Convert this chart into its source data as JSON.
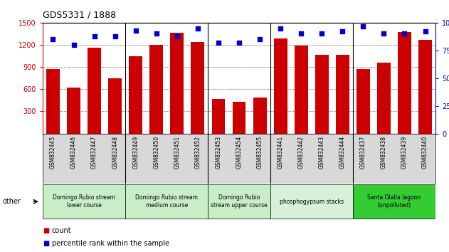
{
  "title": "GDS5331 / 1888",
  "categories": [
    "GSM832445",
    "GSM832446",
    "GSM832447",
    "GSM832448",
    "GSM832449",
    "GSM832450",
    "GSM832451",
    "GSM832452",
    "GSM832453",
    "GSM832454",
    "GSM832455",
    "GSM832441",
    "GSM832442",
    "GSM832443",
    "GSM832444",
    "GSM832437",
    "GSM832438",
    "GSM832439",
    "GSM832440"
  ],
  "counts": [
    870,
    625,
    1160,
    750,
    1050,
    1200,
    1360,
    1240,
    470,
    430,
    490,
    1290,
    1190,
    1070,
    1070,
    875,
    960,
    1370,
    1270
  ],
  "percentiles": [
    85,
    80,
    88,
    88,
    93,
    90,
    88,
    95,
    82,
    82,
    85,
    95,
    90,
    90,
    92,
    97,
    90,
    90,
    92
  ],
  "bar_color": "#cc0000",
  "dot_color": "#0000cc",
  "ylim_left": [
    0,
    1500
  ],
  "ylim_right": [
    0,
    100
  ],
  "yticks_left": [
    300,
    600,
    900,
    1200,
    1500
  ],
  "yticks_right": [
    0,
    25,
    50,
    75,
    100
  ],
  "group_boundaries": [
    3.5,
    7.5,
    10.5,
    14.5
  ],
  "groups": [
    {
      "label": "Domingo Rubio stream\nlower course",
      "start": 0,
      "end": 3,
      "color": "#c8eec8"
    },
    {
      "label": "Domingo Rubio stream\nmedium course",
      "start": 4,
      "end": 7,
      "color": "#c8eec8"
    },
    {
      "label": "Domingo Rubio\nstream upper course",
      "start": 8,
      "end": 10,
      "color": "#c8eec8"
    },
    {
      "label": "phosphogypsum stacks",
      "start": 11,
      "end": 14,
      "color": "#d8f0d8"
    },
    {
      "label": "Santa Olalla lagoon\n(unpolluted)",
      "start": 15,
      "end": 18,
      "color": "#33cc33"
    }
  ]
}
